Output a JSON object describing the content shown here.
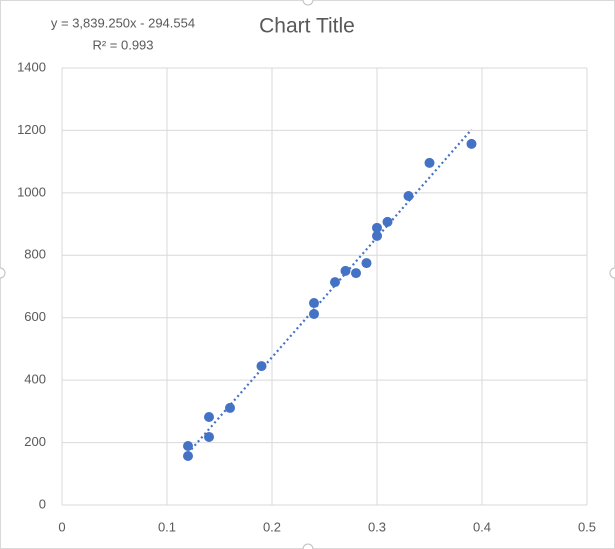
{
  "chart_data": {
    "type": "scatter",
    "title": "Chart Title",
    "x": [
      0.12,
      0.12,
      0.14,
      0.14,
      0.16,
      0.19,
      0.24,
      0.24,
      0.26,
      0.27,
      0.28,
      0.29,
      0.3,
      0.3,
      0.31,
      0.33,
      0.35,
      0.39
    ],
    "values": [
      189,
      157,
      282,
      218,
      311,
      445,
      647,
      612,
      714,
      750,
      743,
      775,
      888,
      862,
      907,
      990,
      1096,
      1157
    ],
    "color": "#4472c4",
    "xlim": [
      0,
      0.5
    ],
    "xticks": [
      0,
      0.1,
      0.2,
      0.3,
      0.4,
      0.5
    ],
    "ylim": [
      0,
      1400
    ],
    "yticks": [
      0,
      200,
      400,
      600,
      800,
      1000,
      1200,
      1400
    ],
    "grid": true,
    "trendline": {
      "slope": 3839.25,
      "intercept": -294.554,
      "color": "#4472c4",
      "equation": "y = 3,839.250x - 294.554",
      "r2": "R² = 0.993"
    }
  }
}
